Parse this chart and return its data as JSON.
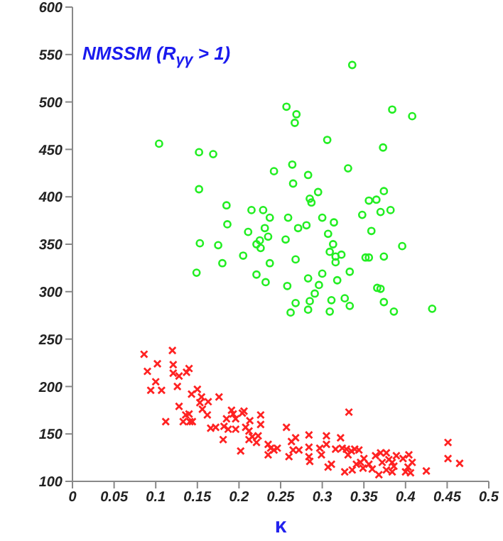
{
  "chart_data": {
    "type": "scatter",
    "title": "NMSSM (R$_{γγ}$ > 1)",
    "xlabel": "κ",
    "xlim": [
      0,
      0.5
    ],
    "xticks": [
      0,
      0.05,
      0.1,
      0.15,
      0.2,
      0.25,
      0.3,
      0.35,
      0.4,
      0.45,
      0.5
    ],
    "ylim": [
      100,
      600
    ],
    "yticks": [
      100,
      150,
      200,
      250,
      300,
      350,
      400,
      450,
      500,
      550,
      600
    ],
    "grid": false,
    "legend": false,
    "series": [
      {
        "color": "#22ee22",
        "marker": "circle",
        "x": [
          0.336,
          0.257,
          0.269,
          0.267,
          0.384,
          0.408,
          0.104,
          0.152,
          0.169,
          0.306,
          0.373,
          0.242,
          0.264,
          0.283,
          0.331,
          0.152,
          0.265,
          0.295,
          0.374,
          0.285,
          0.287,
          0.356,
          0.365,
          0.185,
          0.215,
          0.229,
          0.37,
          0.382,
          0.237,
          0.259,
          0.3,
          0.348,
          0.186,
          0.231,
          0.271,
          0.281,
          0.314,
          0.211,
          0.235,
          0.359,
          0.307,
          0.256,
          0.225,
          0.221,
          0.226,
          0.153,
          0.175,
          0.313,
          0.396,
          0.205,
          0.309,
          0.316,
          0.323,
          0.352,
          0.356,
          0.374,
          0.268,
          0.316,
          0.18,
          0.237,
          0.149,
          0.221,
          0.333,
          0.3,
          0.283,
          0.318,
          0.232,
          0.258,
          0.296,
          0.366,
          0.37,
          0.291,
          0.268,
          0.285,
          0.311,
          0.327,
          0.333,
          0.374,
          0.262,
          0.283,
          0.309,
          0.386,
          0.432
        ],
        "values": [
          539,
          495,
          487,
          478,
          492,
          485,
          456,
          447,
          445,
          460,
          452,
          427,
          434,
          423,
          430,
          408,
          414,
          405,
          406,
          398,
          394,
          396,
          397,
          391,
          386,
          386,
          384,
          386,
          378,
          378,
          378,
          381,
          371,
          367,
          367,
          370,
          373,
          363,
          358,
          364,
          361,
          355,
          354,
          350,
          346,
          351,
          349,
          350,
          348,
          338,
          342,
          337,
          339,
          336,
          336,
          337,
          334,
          331,
          330,
          330,
          320,
          318,
          321,
          319,
          314,
          312,
          310,
          306,
          307,
          304,
          303,
          298,
          288,
          290,
          291,
          293,
          285,
          289,
          278,
          281,
          279,
          279,
          282
        ]
      },
      {
        "color": "#ff2222",
        "marker": "cross",
        "x": [
          0.086,
          0.12,
          0.09,
          0.102,
          0.1,
          0.094,
          0.107,
          0.112,
          0.121,
          0.121,
          0.128,
          0.137,
          0.14,
          0.126,
          0.128,
          0.133,
          0.136,
          0.14,
          0.141,
          0.144,
          0.143,
          0.15,
          0.155,
          0.153,
          0.156,
          0.162,
          0.163,
          0.166,
          0.172,
          0.176,
          0.181,
          0.182,
          0.185,
          0.187,
          0.191,
          0.193,
          0.196,
          0.196,
          0.202,
          0.204,
          0.206,
          0.208,
          0.212,
          0.213,
          0.212,
          0.216,
          0.221,
          0.223,
          0.226,
          0.226,
          0.235,
          0.235,
          0.238,
          0.242,
          0.246,
          0.257,
          0.26,
          0.263,
          0.265,
          0.268,
          0.272,
          0.284,
          0.284,
          0.284,
          0.285,
          0.297,
          0.299,
          0.305,
          0.305,
          0.307,
          0.311,
          0.316,
          0.322,
          0.324,
          0.327,
          0.331,
          0.332,
          0.329,
          0.335,
          0.336,
          0.339,
          0.341,
          0.344,
          0.346,
          0.349,
          0.35,
          0.356,
          0.36,
          0.364,
          0.368,
          0.37,
          0.372,
          0.377,
          0.377,
          0.38,
          0.384,
          0.386,
          0.384,
          0.389,
          0.397,
          0.4,
          0.404,
          0.403,
          0.406,
          0.408,
          0.425,
          0.451,
          0.451,
          0.465
        ],
        "values": [
          234,
          238,
          216,
          224,
          205,
          196,
          196,
          163,
          223,
          214,
          211,
          215,
          219,
          200,
          179,
          163,
          170,
          171,
          163,
          163,
          192,
          197,
          189,
          183,
          176,
          170,
          184,
          156,
          157,
          189,
          144,
          158,
          166,
          155,
          175,
          171,
          166,
          155,
          132,
          172,
          174,
          157,
          153,
          164,
          144,
          147,
          141,
          148,
          170,
          160,
          139,
          128,
          135,
          133,
          135,
          157,
          126,
          142,
          133,
          146,
          133,
          149,
          136,
          126,
          121,
          135,
          128,
          148,
          139,
          115,
          118,
          134,
          146,
          135,
          110,
          128,
          173,
          134,
          132,
          112,
          134,
          118,
          133,
          120,
          114,
          124,
          118,
          113,
          127,
          107,
          130,
          120,
          130,
          112,
          123,
          120,
          116,
          110,
          127,
          124,
          110,
          128,
          115,
          109,
          120,
          111,
          141,
          124,
          119
        ]
      }
    ]
  }
}
